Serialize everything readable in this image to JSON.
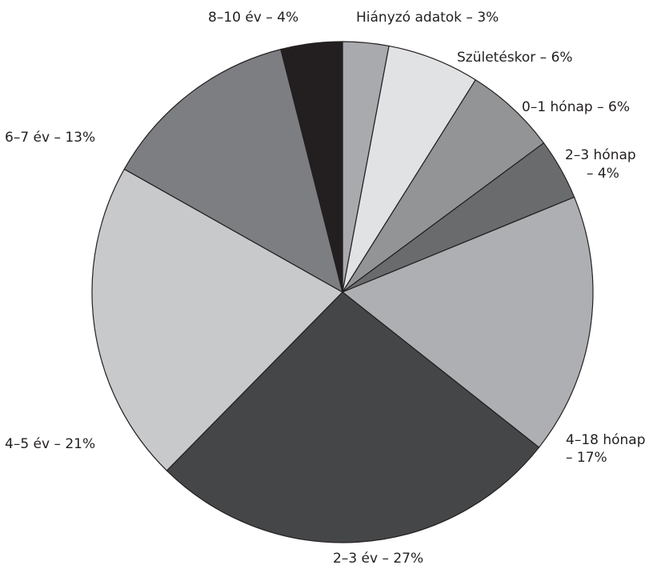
{
  "chart_data": {
    "type": "pie",
    "title": "",
    "slices": [
      {
        "label": "Hiányzó adatok – 3%",
        "value": 3,
        "color": "#a9aaad"
      },
      {
        "label": "Születéskor – 6%",
        "value": 6,
        "color": "#e1e2e4"
      },
      {
        "label": "0–1 hónap – 6%",
        "value": 6,
        "color": "#939496"
      },
      {
        "label": "2–3 hónap – 4%",
        "value": 4,
        "color": "#6a6b6d"
      },
      {
        "label": "4–18 hónap – 17%",
        "value": 17,
        "color": "#aeafb2"
      },
      {
        "label": "2–3 év – 27%",
        "value": 27,
        "color": "#454648"
      },
      {
        "label": "4–5 év – 21%",
        "value": 21,
        "color": "#c8c9cb"
      },
      {
        "label": "6–7 év – 13%",
        "value": 13,
        "color": "#7d7e81"
      },
      {
        "label": "8–10 év – 4%",
        "value": 4,
        "color": "#231f20"
      }
    ],
    "labels": {
      "hianyzo": "Hiányzó adatok  –  3%",
      "szuleteskor": "Születéskor  –  6%",
      "h01": "0–1  hónap  –  6%",
      "h23_line1": "2–3  hónap",
      "h23_line2": "–  4%",
      "h418_line1": "4–18  hónap",
      "h418_line2": "–  17%",
      "e23": "2–3  év  –  27%",
      "e45": "4–5  év  –  21%",
      "e67": "6–7  év  –  13%",
      "e810": "8–10  év  –  4%"
    }
  }
}
